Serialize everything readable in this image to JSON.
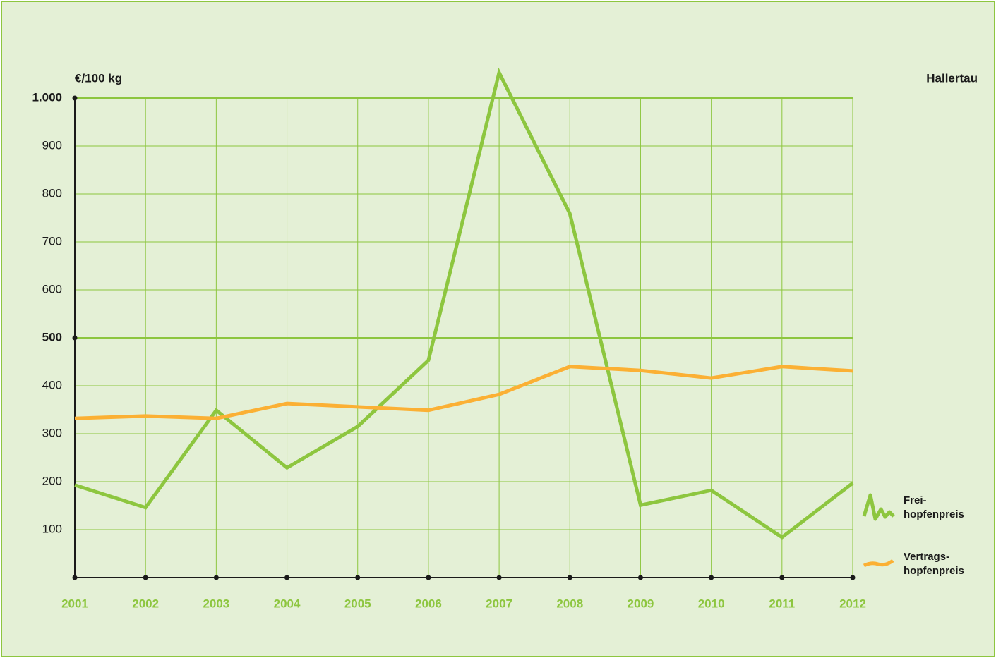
{
  "chart_data": {
    "type": "line",
    "y_label": "€/100 kg",
    "annotation": "Hallertau",
    "categories": [
      "2001",
      "2002",
      "2003",
      "2004",
      "2005",
      "2006",
      "2007",
      "2008",
      "2009",
      "2010",
      "2011",
      "2012"
    ],
    "series": [
      {
        "name": "Frei-\nhopfenpreis",
        "color": "#8dc63f",
        "values": [
          193,
          146,
          349,
          229,
          315,
          453,
          1053,
          759,
          151,
          182,
          84,
          197
        ]
      },
      {
        "name": "Vertrags-\nhopfenpreis",
        "color": "#fbb034",
        "values": [
          332,
          337,
          332,
          363,
          356,
          349,
          382,
          440,
          432,
          416,
          440,
          431
        ]
      }
    ],
    "ylim": [
      0,
      1000
    ],
    "yticks": [
      100,
      200,
      300,
      400,
      500,
      600,
      700,
      800,
      900,
      {
        "value": 1000,
        "label": "1.000"
      }
    ],
    "grid": true
  }
}
